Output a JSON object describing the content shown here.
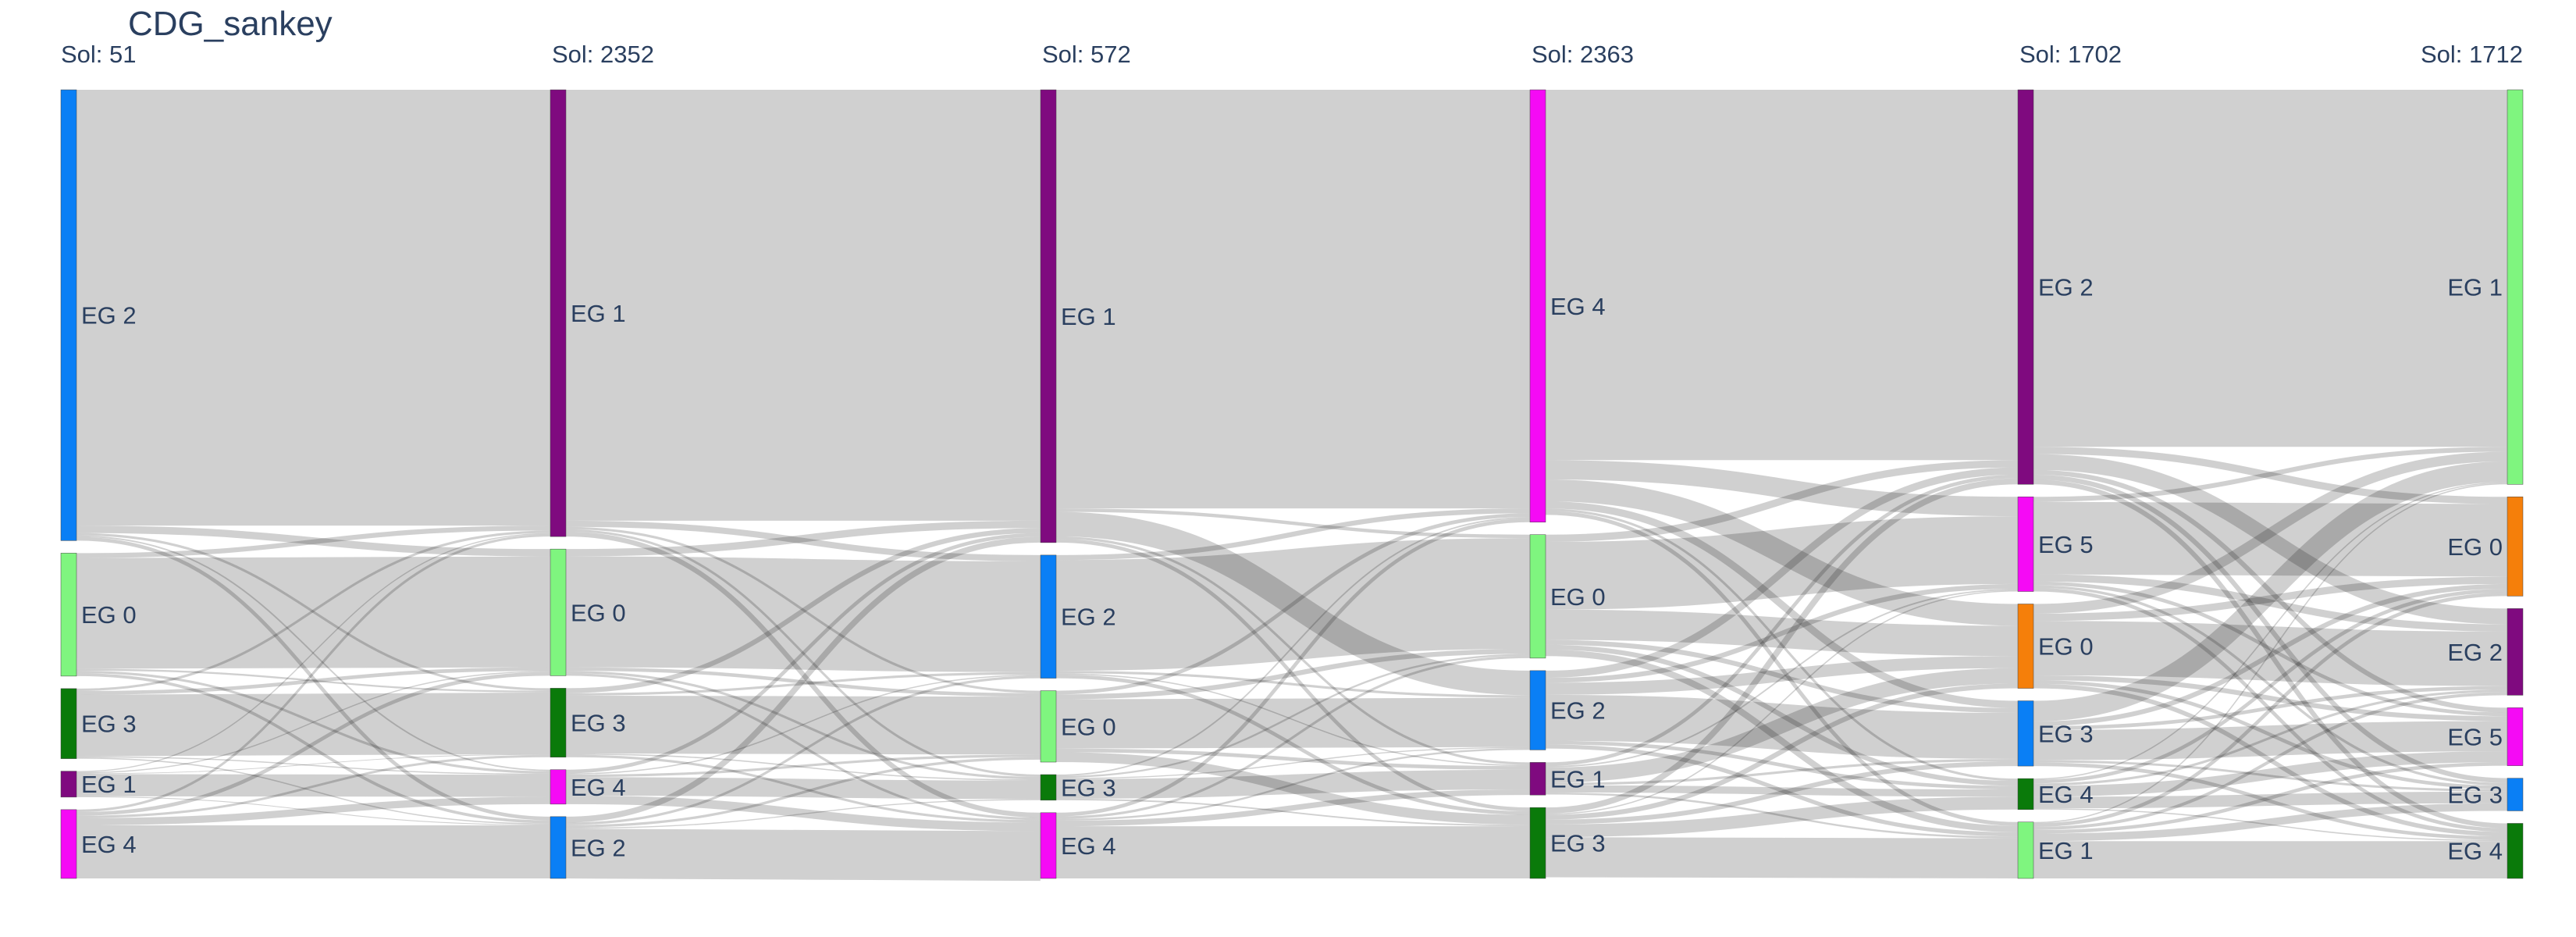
{
  "chart_data": {
    "type": "sankey",
    "title": "CDG_sankey",
    "link_color": "#c8c8c8",
    "columns": [
      {
        "label": "Sol: 51",
        "nodes": [
          {
            "name": "EG 2",
            "value": 3662,
            "color": "#0a7ff5"
          },
          {
            "name": "EG 0",
            "value": 999,
            "color": "#7ff57f"
          },
          {
            "name": "EG 3",
            "value": 569,
            "color": "#0a7a0a"
          },
          {
            "name": "EG 1",
            "value": 211,
            "color": "#7f0a7f"
          },
          {
            "name": "EG 4",
            "value": 559,
            "color": "#f50af5"
          }
        ]
      },
      {
        "label": "Sol: 2352",
        "nodes": [
          {
            "name": "EG 1",
            "value": 3629,
            "color": "#7f0a7f"
          },
          {
            "name": "EG 0",
            "value": 1029,
            "color": "#7ff57f"
          },
          {
            "name": "EG 3",
            "value": 560,
            "color": "#0a7a0a"
          },
          {
            "name": "EG 4",
            "value": 280,
            "color": "#f50af5"
          },
          {
            "name": "EG 2",
            "value": 502,
            "color": "#0a7ff5"
          }
        ]
      },
      {
        "label": "Sol: 572",
        "nodes": [
          {
            "name": "EG 1",
            "value": 3678,
            "color": "#7f0a7f"
          },
          {
            "name": "EG 2",
            "value": 1000,
            "color": "#0a7ff5"
          },
          {
            "name": "EG 0",
            "value": 580,
            "color": "#7ff57f"
          },
          {
            "name": "EG 3",
            "value": 208,
            "color": "#0a7a0a"
          },
          {
            "name": "EG 4",
            "value": 534,
            "color": "#f50af5"
          }
        ]
      },
      {
        "label": "Sol: 2363",
        "nodes": [
          {
            "name": "EG 4",
            "value": 3512,
            "color": "#f50af5"
          },
          {
            "name": "EG 0",
            "value": 1003,
            "color": "#7ff57f"
          },
          {
            "name": "EG 2",
            "value": 644,
            "color": "#0a7ff5"
          },
          {
            "name": "EG 1",
            "value": 265,
            "color": "#7f0a7f"
          },
          {
            "name": "EG 3",
            "value": 576,
            "color": "#0a7a0a"
          }
        ]
      },
      {
        "label": "Sol: 1702",
        "nodes": [
          {
            "name": "EG 2",
            "value": 3260,
            "color": "#7f0a7f"
          },
          {
            "name": "EG 5",
            "value": 782,
            "color": "#f50af5"
          },
          {
            "name": "EG 0",
            "value": 697,
            "color": "#f57f0a"
          },
          {
            "name": "EG 3",
            "value": 539,
            "color": "#0a7ff5"
          },
          {
            "name": "EG 4",
            "value": 256,
            "color": "#0a7a0a"
          },
          {
            "name": "EG 1",
            "value": 466,
            "color": "#7ff57f"
          }
        ]
      },
      {
        "label": "Sol: 1712",
        "nodes": [
          {
            "name": "EG 1",
            "value": 3260,
            "color": "#7ff57f"
          },
          {
            "name": "EG 0",
            "value": 820,
            "color": "#f57f0a"
          },
          {
            "name": "EG 2",
            "value": 716,
            "color": "#7f0a7f"
          },
          {
            "name": "EG 5",
            "value": 479,
            "color": "#f50af5"
          },
          {
            "name": "EG 3",
            "value": 270,
            "color": "#0a7ff5"
          },
          {
            "name": "EG 4",
            "value": 455,
            "color": "#0a7a0a"
          }
        ]
      }
    ],
    "links": [
      [
        {
          "source": 0,
          "target": 0,
          "value": 3540
        },
        {
          "source": 0,
          "target": 1,
          "value": 60
        },
        {
          "source": 0,
          "target": 2,
          "value": 20
        },
        {
          "source": 0,
          "target": 3,
          "value": 12
        },
        {
          "source": 0,
          "target": 4,
          "value": 30
        },
        {
          "source": 1,
          "target": 0,
          "value": 40
        },
        {
          "source": 1,
          "target": 1,
          "value": 900
        },
        {
          "source": 1,
          "target": 2,
          "value": 15
        },
        {
          "source": 1,
          "target": 3,
          "value": 20
        },
        {
          "source": 1,
          "target": 4,
          "value": 24
        },
        {
          "source": 2,
          "target": 0,
          "value": 20
        },
        {
          "source": 2,
          "target": 1,
          "value": 30
        },
        {
          "source": 2,
          "target": 2,
          "value": 500
        },
        {
          "source": 2,
          "target": 3,
          "value": 9
        },
        {
          "source": 2,
          "target": 4,
          "value": 10
        },
        {
          "source": 3,
          "target": 0,
          "value": 9
        },
        {
          "source": 3,
          "target": 1,
          "value": 9
        },
        {
          "source": 3,
          "target": 2,
          "value": 6
        },
        {
          "source": 3,
          "target": 3,
          "value": 180
        },
        {
          "source": 3,
          "target": 4,
          "value": 7
        },
        {
          "source": 4,
          "target": 0,
          "value": 20
        },
        {
          "source": 4,
          "target": 1,
          "value": 30
        },
        {
          "source": 4,
          "target": 2,
          "value": 19
        },
        {
          "source": 4,
          "target": 3,
          "value": 59
        },
        {
          "source": 4,
          "target": 4,
          "value": 431
        }
      ],
      [
        {
          "source": 0,
          "target": 0,
          "value": 3500
        },
        {
          "source": 0,
          "target": 1,
          "value": 50
        },
        {
          "source": 0,
          "target": 2,
          "value": 20
        },
        {
          "source": 0,
          "target": 3,
          "value": 19
        },
        {
          "source": 0,
          "target": 4,
          "value": 40
        },
        {
          "source": 1,
          "target": 0,
          "value": 60
        },
        {
          "source": 1,
          "target": 1,
          "value": 900
        },
        {
          "source": 1,
          "target": 2,
          "value": 29
        },
        {
          "source": 1,
          "target": 3,
          "value": 20
        },
        {
          "source": 1,
          "target": 4,
          "value": 20
        },
        {
          "source": 2,
          "target": 0,
          "value": 40
        },
        {
          "source": 2,
          "target": 1,
          "value": 20
        },
        {
          "source": 2,
          "target": 2,
          "value": 470
        },
        {
          "source": 2,
          "target": 3,
          "value": 10
        },
        {
          "source": 2,
          "target": 4,
          "value": 20
        },
        {
          "source": 3,
          "target": 0,
          "value": 30
        },
        {
          "source": 3,
          "target": 1,
          "value": 10
        },
        {
          "source": 3,
          "target": 2,
          "value": 20
        },
        {
          "source": 3,
          "target": 3,
          "value": 150
        },
        {
          "source": 3,
          "target": 4,
          "value": 70
        },
        {
          "source": 4,
          "target": 0,
          "value": 48
        },
        {
          "source": 4,
          "target": 1,
          "value": 20
        },
        {
          "source": 4,
          "target": 2,
          "value": 21
        },
        {
          "source": 4,
          "target": 3,
          "value": 9
        },
        {
          "source": 4,
          "target": 4,
          "value": 404
        }
      ],
      [
        {
          "source": 0,
          "target": 0,
          "value": 3400
        },
        {
          "source": 0,
          "target": 1,
          "value": 28
        },
        {
          "source": 0,
          "target": 2,
          "value": 200
        },
        {
          "source": 0,
          "target": 3,
          "value": 20
        },
        {
          "source": 0,
          "target": 4,
          "value": 30
        },
        {
          "source": 1,
          "target": 0,
          "value": 40
        },
        {
          "source": 1,
          "target": 1,
          "value": 900
        },
        {
          "source": 1,
          "target": 2,
          "value": 20
        },
        {
          "source": 1,
          "target": 3,
          "value": 10
        },
        {
          "source": 1,
          "target": 4,
          "value": 30
        },
        {
          "source": 2,
          "target": 0,
          "value": 30
        },
        {
          "source": 2,
          "target": 1,
          "value": 40
        },
        {
          "source": 2,
          "target": 2,
          "value": 400
        },
        {
          "source": 2,
          "target": 3,
          "value": 30
        },
        {
          "source": 2,
          "target": 4,
          "value": 80
        },
        {
          "source": 3,
          "target": 0,
          "value": 12
        },
        {
          "source": 3,
          "target": 1,
          "value": 15
        },
        {
          "source": 3,
          "target": 2,
          "value": 9
        },
        {
          "source": 3,
          "target": 3,
          "value": 160
        },
        {
          "source": 3,
          "target": 4,
          "value": 12
        },
        {
          "source": 4,
          "target": 0,
          "value": 30
        },
        {
          "source": 4,
          "target": 1,
          "value": 20
        },
        {
          "source": 4,
          "target": 2,
          "value": 15
        },
        {
          "source": 4,
          "target": 3,
          "value": 45
        },
        {
          "source": 4,
          "target": 4,
          "value": 424
        }
      ],
      [
        {
          "source": 0,
          "target": 0,
          "value": 3060
        },
        {
          "source": 0,
          "target": 1,
          "value": 160
        },
        {
          "source": 0,
          "target": 2,
          "value": 180
        },
        {
          "source": 0,
          "target": 3,
          "value": 60
        },
        {
          "source": 0,
          "target": 4,
          "value": 20
        },
        {
          "source": 0,
          "target": 5,
          "value": 32
        },
        {
          "source": 1,
          "target": 0,
          "value": 60
        },
        {
          "source": 1,
          "target": 1,
          "value": 560
        },
        {
          "source": 1,
          "target": 2,
          "value": 250
        },
        {
          "source": 1,
          "target": 3,
          "value": 40
        },
        {
          "source": 1,
          "target": 4,
          "value": 40
        },
        {
          "source": 1,
          "target": 5,
          "value": 53
        },
        {
          "source": 2,
          "target": 0,
          "value": 60
        },
        {
          "source": 2,
          "target": 1,
          "value": 40
        },
        {
          "source": 2,
          "target": 2,
          "value": 100
        },
        {
          "source": 2,
          "target": 3,
          "value": 380
        },
        {
          "source": 2,
          "target": 4,
          "value": 30
        },
        {
          "source": 2,
          "target": 5,
          "value": 34
        },
        {
          "source": 3,
          "target": 0,
          "value": 30
        },
        {
          "source": 3,
          "target": 1,
          "value": 12
        },
        {
          "source": 3,
          "target": 2,
          "value": 127
        },
        {
          "source": 3,
          "target": 3,
          "value": 20
        },
        {
          "source": 3,
          "target": 4,
          "value": 60
        },
        {
          "source": 3,
          "target": 5,
          "value": 16
        },
        {
          "source": 4,
          "target": 0,
          "value": 50
        },
        {
          "source": 4,
          "target": 1,
          "value": 10
        },
        {
          "source": 4,
          "target": 2,
          "value": 40
        },
        {
          "source": 4,
          "target": 3,
          "value": 39
        },
        {
          "source": 4,
          "target": 4,
          "value": 106
        },
        {
          "source": 4,
          "target": 5,
          "value": 331
        }
      ],
      [
        {
          "source": 0,
          "target": 0,
          "value": 2950
        },
        {
          "source": 0,
          "target": 1,
          "value": 60
        },
        {
          "source": 0,
          "target": 2,
          "value": 130
        },
        {
          "source": 0,
          "target": 3,
          "value": 40
        },
        {
          "source": 0,
          "target": 4,
          "value": 40
        },
        {
          "source": 0,
          "target": 5,
          "value": 40
        },
        {
          "source": 1,
          "target": 0,
          "value": 40
        },
        {
          "source": 1,
          "target": 1,
          "value": 600
        },
        {
          "source": 1,
          "target": 2,
          "value": 60
        },
        {
          "source": 1,
          "target": 3,
          "value": 30
        },
        {
          "source": 1,
          "target": 4,
          "value": 22
        },
        {
          "source": 1,
          "target": 5,
          "value": 30
        },
        {
          "source": 2,
          "target": 0,
          "value": 80
        },
        {
          "source": 2,
          "target": 1,
          "value": 60
        },
        {
          "source": 2,
          "target": 2,
          "value": 450
        },
        {
          "source": 2,
          "target": 3,
          "value": 40
        },
        {
          "source": 2,
          "target": 4,
          "value": 30
        },
        {
          "source": 2,
          "target": 5,
          "value": 37
        },
        {
          "source": 3,
          "target": 0,
          "value": 170
        },
        {
          "source": 3,
          "target": 1,
          "value": 40
        },
        {
          "source": 3,
          "target": 2,
          "value": 30
        },
        {
          "source": 3,
          "target": 3,
          "value": 250
        },
        {
          "source": 3,
          "target": 4,
          "value": 19
        },
        {
          "source": 3,
          "target": 5,
          "value": 30
        },
        {
          "source": 4,
          "target": 0,
          "value": 10
        },
        {
          "source": 4,
          "target": 1,
          "value": 30
        },
        {
          "source": 4,
          "target": 2,
          "value": 20
        },
        {
          "source": 4,
          "target": 3,
          "value": 90
        },
        {
          "source": 4,
          "target": 4,
          "value": 96
        },
        {
          "source": 4,
          "target": 5,
          "value": 10
        },
        {
          "source": 5,
          "target": 0,
          "value": 10
        },
        {
          "source": 5,
          "target": 1,
          "value": 30
        },
        {
          "source": 5,
          "target": 2,
          "value": 26
        },
        {
          "source": 5,
          "target": 3,
          "value": 29
        },
        {
          "source": 5,
          "target": 4,
          "value": 63
        },
        {
          "source": 5,
          "target": 5,
          "value": 308
        }
      ]
    ]
  }
}
